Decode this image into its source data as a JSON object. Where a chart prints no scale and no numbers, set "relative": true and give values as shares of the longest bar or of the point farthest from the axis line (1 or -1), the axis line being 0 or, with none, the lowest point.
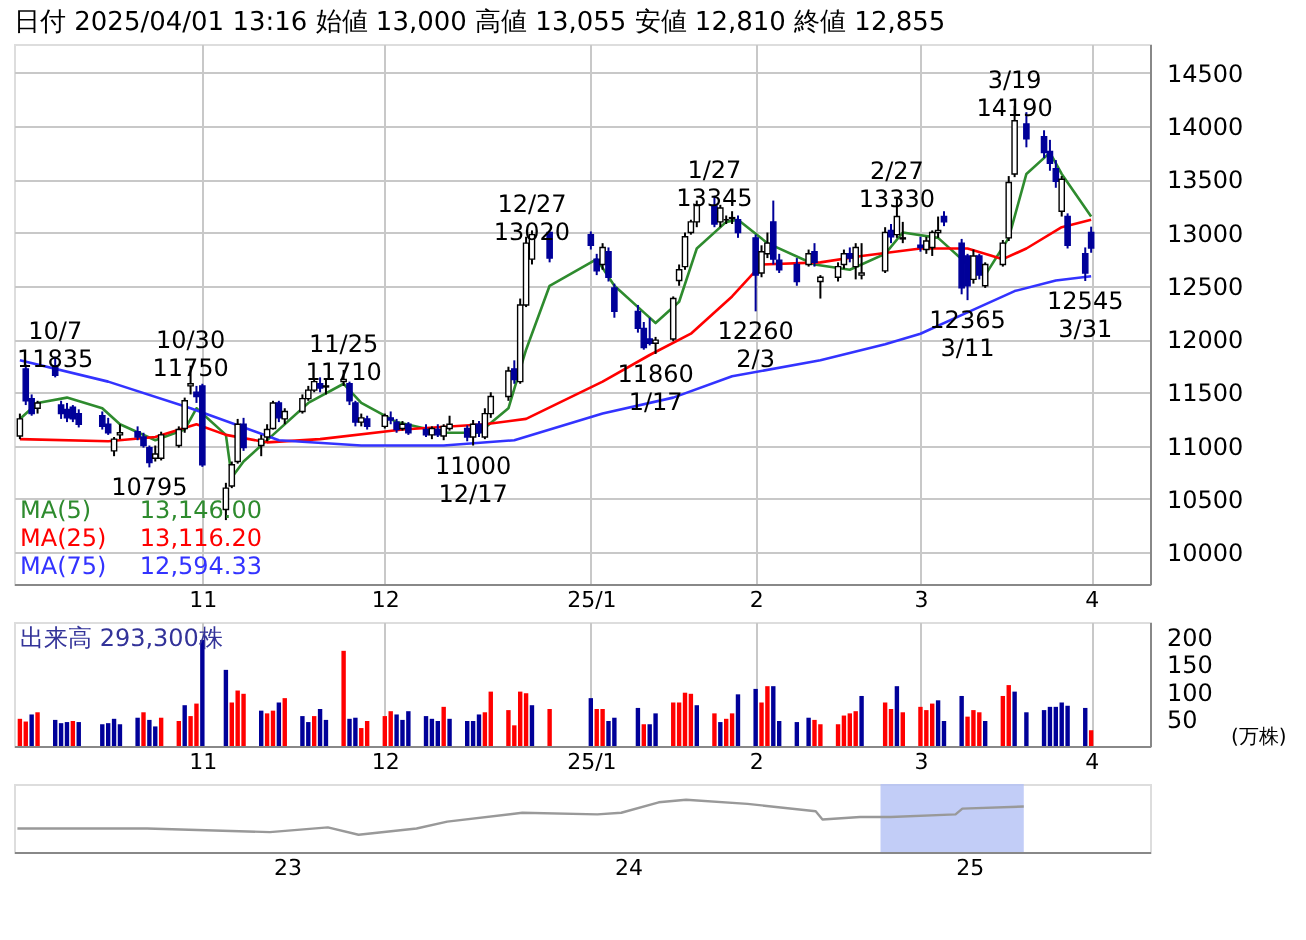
{
  "chart_data": [
    {
      "type": "candlestick",
      "title": "日付 2025/04/01 13:16 始値 13,000 高値 13,055 安値 12,810 終値 12,855",
      "x": [
        "2024-10-01",
        "2024-10-02",
        "2024-10-03",
        "2024-10-04",
        "2024-10-07",
        "2024-10-08",
        "2024-10-09",
        "2024-10-10",
        "2024-10-11",
        "2024-10-15",
        "2024-10-16",
        "2024-10-17",
        "2024-10-18",
        "2024-10-21",
        "2024-10-22",
        "2024-10-23",
        "2024-10-24",
        "2024-10-25",
        "2024-10-28",
        "2024-10-29",
        "2024-10-30",
        "2024-10-31",
        "2024-11-01",
        "2024-11-05",
        "2024-11-06",
        "2024-11-07",
        "2024-11-08",
        "2024-11-11",
        "2024-11-12",
        "2024-11-13",
        "2024-11-14",
        "2024-11-15",
        "2024-11-18",
        "2024-11-19",
        "2024-11-20",
        "2024-11-21",
        "2024-11-22",
        "2024-11-25",
        "2024-11-26",
        "2024-11-27",
        "2024-11-28",
        "2024-11-29",
        "2024-12-02",
        "2024-12-03",
        "2024-12-04",
        "2024-12-05",
        "2024-12-06",
        "2024-12-09",
        "2024-12-10",
        "2024-12-11",
        "2024-12-12",
        "2024-12-13",
        "2024-12-16",
        "2024-12-17",
        "2024-12-18",
        "2024-12-19",
        "2024-12-20",
        "2024-12-23",
        "2024-12-24",
        "2024-12-25",
        "2024-12-26",
        "2024-12-27",
        "2024-12-30",
        "2025-01-06",
        "2025-01-07",
        "2025-01-08",
        "2025-01-09",
        "2025-01-10",
        "2025-01-14",
        "2025-01-15",
        "2025-01-16",
        "2025-01-17",
        "2025-01-20",
        "2025-01-21",
        "2025-01-22",
        "2025-01-23",
        "2025-01-24",
        "2025-01-27",
        "2025-01-28",
        "2025-01-29",
        "2025-01-30",
        "2025-01-31",
        "2025-02-03",
        "2025-02-04",
        "2025-02-05",
        "2025-02-06",
        "2025-02-07",
        "2025-02-10",
        "2025-02-12",
        "2025-02-13",
        "2025-02-14",
        "2025-02-17",
        "2025-02-18",
        "2025-02-19",
        "2025-02-20",
        "2025-02-21",
        "2025-02-25",
        "2025-02-26",
        "2025-02-27",
        "2025-02-28",
        "2025-03-03",
        "2025-03-04",
        "2025-03-05",
        "2025-03-06",
        "2025-03-07",
        "2025-03-10",
        "2025-03-11",
        "2025-03-12",
        "2025-03-13",
        "2025-03-14",
        "2025-03-17",
        "2025-03-18",
        "2025-03-19",
        "2025-03-21",
        "2025-03-24",
        "2025-03-25",
        "2025-03-26",
        "2025-03-27",
        "2025-03-28",
        "2025-03-31",
        "2025-04-01"
      ],
      "ohlc": [
        [
          11090,
          11300,
          11060,
          11250
        ],
        [
          11720,
          11760,
          11380,
          11420
        ],
        [
          11440,
          11480,
          11280,
          11300
        ],
        [
          11350,
          11420,
          11300,
          11400
        ],
        [
          11750,
          11835,
          11640,
          11660
        ],
        [
          11380,
          11420,
          11250,
          11300
        ],
        [
          11340,
          11400,
          11220,
          11260
        ],
        [
          11360,
          11380,
          11220,
          11250
        ],
        [
          11300,
          11340,
          11170,
          11200
        ],
        [
          11280,
          11320,
          11150,
          11180
        ],
        [
          11200,
          11260,
          11100,
          11120
        ],
        [
          10950,
          11080,
          10900,
          11060
        ],
        [
          11100,
          11200,
          11060,
          11120
        ],
        [
          11130,
          11180,
          11050,
          11080
        ],
        [
          11080,
          11120,
          10980,
          11000
        ],
        [
          10980,
          11000,
          10795,
          10840
        ],
        [
          10880,
          11000,
          10850,
          10920
        ],
        [
          10880,
          11130,
          10860,
          11100
        ],
        [
          11000,
          11180,
          10980,
          11150
        ],
        [
          11160,
          11450,
          11120,
          11420
        ],
        [
          11560,
          11750,
          11480,
          11580
        ],
        [
          11500,
          11560,
          11400,
          11460
        ],
        [
          11560,
          11580,
          10800,
          10820
        ],
        [
          10400,
          10650,
          10300,
          10600
        ],
        [
          10620,
          10850,
          10600,
          10820
        ],
        [
          10850,
          11250,
          10830,
          11200
        ],
        [
          11200,
          11260,
          10950,
          10980
        ],
        [
          11000,
          11100,
          10900,
          11060
        ],
        [
          11080,
          11200,
          11040,
          11150
        ],
        [
          11160,
          11420,
          11150,
          11400
        ],
        [
          11400,
          11420,
          11220,
          11260
        ],
        [
          11250,
          11350,
          11200,
          11320
        ],
        [
          11320,
          11480,
          11300,
          11440
        ],
        [
          11440,
          11560,
          11420,
          11520
        ],
        [
          11520,
          11620,
          11500,
          11600
        ],
        [
          11580,
          11640,
          11500,
          11540
        ],
        [
          11550,
          11620,
          11480,
          11560
        ],
        [
          11600,
          11710,
          11560,
          11620
        ],
        [
          11580,
          11600,
          11380,
          11420
        ],
        [
          11400,
          11420,
          11180,
          11220
        ],
        [
          11220,
          11300,
          11180,
          11260
        ],
        [
          11250,
          11280,
          11150,
          11180
        ],
        [
          11180,
          11300,
          11160,
          11280
        ],
        [
          11260,
          11320,
          11200,
          11240
        ],
        [
          11220,
          11250,
          11120,
          11150
        ],
        [
          11160,
          11230,
          11140,
          11200
        ],
        [
          11200,
          11220,
          11100,
          11120
        ],
        [
          11150,
          11200,
          11080,
          11100
        ],
        [
          11100,
          11180,
          11060,
          11160
        ],
        [
          11150,
          11200,
          11080,
          11100
        ],
        [
          11090,
          11200,
          11050,
          11180
        ],
        [
          11160,
          11280,
          11140,
          11200
        ],
        [
          11160,
          11190,
          11040,
          11080
        ],
        [
          11080,
          11240,
          11000,
          11200
        ],
        [
          11200,
          11230,
          11080,
          11120
        ],
        [
          11080,
          11350,
          11060,
          11300
        ],
        [
          11300,
          11500,
          11260,
          11460
        ],
        [
          11460,
          11740,
          11420,
          11700
        ],
        [
          11720,
          11800,
          11580,
          11620
        ],
        [
          11600,
          12380,
          11580,
          12320
        ],
        [
          12320,
          12960,
          12300,
          12900
        ],
        [
          12750,
          13020,
          12700,
          12980
        ],
        [
          13000,
          13010,
          12720,
          12760
        ],
        [
          12980,
          13010,
          12840,
          12880
        ],
        [
          12750,
          12800,
          12600,
          12640
        ],
        [
          12700,
          12900,
          12650,
          12860
        ],
        [
          12820,
          12860,
          12540,
          12580
        ],
        [
          12480,
          12520,
          12200,
          12260
        ],
        [
          12260,
          12320,
          12060,
          12100
        ],
        [
          12100,
          12160,
          11900,
          11920
        ],
        [
          12000,
          12200,
          11940,
          11960
        ],
        [
          11960,
          12020,
          11860,
          11990
        ],
        [
          12000,
          12400,
          11980,
          12380
        ],
        [
          12550,
          12700,
          12500,
          12650
        ],
        [
          12680,
          13000,
          12650,
          12960
        ],
        [
          13000,
          13120,
          12980,
          13100
        ],
        [
          13100,
          13300,
          13050,
          13260
        ],
        [
          13250,
          13345,
          13050,
          13080
        ],
        [
          13100,
          13260,
          13050,
          13230
        ],
        [
          13120,
          13160,
          13080,
          13120
        ],
        [
          13130,
          13200,
          13080,
          13140
        ],
        [
          13120,
          13160,
          12950,
          13000
        ],
        [
          12950,
          12980,
          12260,
          12600
        ],
        [
          12620,
          12880,
          12580,
          12820
        ],
        [
          12800,
          13000,
          12760,
          12900
        ],
        [
          13100,
          13300,
          12700,
          12750
        ],
        [
          12740,
          12800,
          12620,
          12650
        ],
        [
          12700,
          12760,
          12500,
          12540
        ],
        [
          12700,
          12840,
          12680,
          12800
        ],
        [
          12820,
          12900,
          12680,
          12720
        ],
        [
          12540,
          12600,
          12380,
          12580
        ],
        [
          12580,
          12720,
          12540,
          12680
        ],
        [
          12700,
          12840,
          12660,
          12800
        ],
        [
          12800,
          12860,
          12720,
          12760
        ],
        [
          12680,
          12900,
          12560,
          12860
        ],
        [
          12600,
          12900,
          12560,
          12620
        ],
        [
          12640,
          13050,
          12620,
          13000
        ],
        [
          13020,
          13080,
          12900,
          12960
        ],
        [
          12980,
          13330,
          12950,
          13150
        ],
        [
          12940,
          13100,
          12900,
          12950
        ],
        [
          12880,
          12960,
          12820,
          12860
        ],
        [
          12840,
          12960,
          12800,
          12920
        ],
        [
          12860,
          13020,
          12780,
          13000
        ],
        [
          13000,
          13150,
          12950,
          13020
        ],
        [
          13150,
          13200,
          13060,
          13100
        ],
        [
          12900,
          12940,
          12420,
          12480
        ],
        [
          12780,
          12800,
          12365,
          12500
        ],
        [
          12560,
          12840,
          12520,
          12780
        ],
        [
          12780,
          12800,
          12560,
          12600
        ],
        [
          12500,
          12720,
          12480,
          12700
        ],
        [
          12700,
          12930,
          12680,
          12900
        ],
        [
          12950,
          13530,
          12920,
          13470
        ],
        [
          13550,
          14190,
          13520,
          14050
        ],
        [
          14020,
          14130,
          13800,
          13880
        ],
        [
          13900,
          13960,
          13700,
          13750
        ],
        [
          13760,
          13870,
          13580,
          13650
        ],
        [
          13600,
          13680,
          13420,
          13480
        ],
        [
          13200,
          13530,
          13150,
          13500
        ],
        [
          13150,
          13180,
          12850,
          12880
        ],
        [
          12800,
          12860,
          12545,
          12620
        ],
        [
          13000,
          13055,
          12810,
          12855
        ]
      ],
      "series": [
        {
          "name": "MA(5)",
          "type": "line",
          "color": "#2e8b2e",
          "x": [
            "2024-10-01",
            "2024-10-04",
            "2024-10-09",
            "2024-10-15",
            "2024-10-18",
            "2024-10-24",
            "2024-10-29",
            "2024-10-31",
            "2024-11-05",
            "2024-11-06",
            "2024-11-08",
            "2024-11-13",
            "2024-11-19",
            "2024-11-25",
            "2024-11-28",
            "2024-12-04",
            "2024-12-12",
            "2024-12-18",
            "2024-12-23",
            "2024-12-26",
            "2024-12-30",
            "2025-01-07",
            "2025-01-10",
            "2025-01-15",
            "2025-01-17",
            "2025-01-21",
            "2025-01-24",
            "2025-01-29",
            "2025-01-31",
            "2025-02-05",
            "2025-02-13",
            "2025-02-19",
            "2025-02-25",
            "2025-02-28",
            "2025-03-06",
            "2025-03-11",
            "2025-03-14",
            "2025-03-18",
            "2025-03-21",
            "2025-03-25",
            "2025-03-27",
            "2025-04-01"
          ],
          "values": [
            11250,
            11400,
            11450,
            11350,
            11200,
            11050,
            11150,
            11350,
            11100,
            10700,
            10850,
            11100,
            11400,
            11580,
            11400,
            11220,
            11120,
            11120,
            11350,
            11900,
            12500,
            12750,
            12500,
            12250,
            12150,
            12350,
            12850,
            13100,
            13120,
            12900,
            12700,
            12650,
            12800,
            13000,
            12950,
            12700,
            12600,
            12950,
            13550,
            13750,
            13550,
            13150
          ]
        },
        {
          "name": "MA(25)",
          "type": "line",
          "color": "#ff0000",
          "x": [
            "2024-10-01",
            "2024-10-16",
            "2024-10-24",
            "2024-10-31",
            "2024-11-05",
            "2024-11-12",
            "2024-11-21",
            "2024-12-05",
            "2024-12-19",
            "2024-12-26",
            "2025-01-08",
            "2025-01-16",
            "2025-01-23",
            "2025-01-30",
            "2025-02-04",
            "2025-02-14",
            "2025-02-21",
            "2025-03-03",
            "2025-03-11",
            "2025-03-17",
            "2025-03-21",
            "2025-03-27",
            "2025-04-01"
          ],
          "values": [
            11060,
            11040,
            11080,
            11200,
            11100,
            11030,
            11060,
            11150,
            11200,
            11250,
            11600,
            11850,
            12050,
            12400,
            12700,
            12720,
            12780,
            12850,
            12850,
            12750,
            12850,
            13050,
            13120
          ]
        },
        {
          "name": "MA(75)",
          "type": "line",
          "color": "#3333ff",
          "x": [
            "2024-10-01",
            "2024-10-16",
            "2024-10-30",
            "2024-11-14",
            "2024-11-28",
            "2024-12-12",
            "2024-12-24",
            "2025-01-08",
            "2025-01-20",
            "2025-01-30",
            "2025-02-14",
            "2025-02-25",
            "2025-03-03",
            "2025-03-11",
            "2025-03-19",
            "2025-03-26",
            "2025-04-01"
          ],
          "values": [
            11800,
            11600,
            11350,
            11050,
            11000,
            11000,
            11050,
            11300,
            11450,
            11650,
            11800,
            11950,
            12050,
            12250,
            12450,
            12550,
            12590
          ]
        }
      ],
      "annotations": [
        "13,146.00",
        "13,116.20",
        "12,594.33",
        {
          "text": "10/7\n11835",
          "x": "2024-10-07",
          "y": 11835
        },
        {
          "text": "10795",
          "x": "2024-10-23",
          "y": 10795
        },
        {
          "text": "10/30\n11750",
          "x": "2024-10-30",
          "y": 11750
        },
        {
          "text": "11/25\n11710",
          "x": "2024-11-25",
          "y": 11710
        },
        {
          "text": "11000\n12/17",
          "x": "2024-12-17",
          "y": 11000
        },
        {
          "text": "12/27\n13020",
          "x": "2024-12-27",
          "y": 13020
        },
        {
          "text": "11860\n1/17",
          "x": "2025-01-17",
          "y": 11860
        },
        {
          "text": "1/27\n13345",
          "x": "2025-01-27",
          "y": 13345
        },
        {
          "text": "12260\n2/3",
          "x": "2025-02-03",
          "y": 12260
        },
        {
          "text": "2/27\n13330",
          "x": "2025-02-27",
          "y": 13330
        },
        {
          "text": "12365\n3/11",
          "x": "2025-03-11",
          "y": 12365
        },
        {
          "text": "3/19\n14190",
          "x": "2025-03-19",
          "y": 14190
        },
        {
          "text": "12545\n3/31",
          "x": "2025-03-31",
          "y": 12545
        }
      ],
      "xlim": [
        "2024-09-30",
        "2025-04-11"
      ],
      "xticks": [
        {
          "value": "2024-11-01",
          "label": "11"
        },
        {
          "value": "2024-12-02",
          "label": "12"
        },
        {
          "value": "2025-01-06",
          "label": "25/1"
        },
        {
          "value": "2025-02-03",
          "label": "2"
        },
        {
          "value": "2025-03-03",
          "label": "3"
        },
        {
          "value": "2025-04-01",
          "label": "4"
        }
      ],
      "ylim": [
        9700,
        14770
      ],
      "yticks": [
        10000,
        10500,
        11000,
        11500,
        12000,
        12500,
        13000,
        13500,
        14000,
        14500
      ],
      "grid": true,
      "legend": "bottom left"
    },
    {
      "type": "bar",
      "title": "出来高 293,300株",
      "ylabel": "(万株)",
      "x": [
        "2024-10-01",
        "2024-10-02",
        "2024-10-03",
        "2024-10-04",
        "2024-10-07",
        "2024-10-08",
        "2024-10-09",
        "2024-10-10",
        "2024-10-11",
        "2024-10-15",
        "2024-10-16",
        "2024-10-17",
        "2024-10-18",
        "2024-10-21",
        "2024-10-22",
        "2024-10-23",
        "2024-10-24",
        "2024-10-25",
        "2024-10-28",
        "2024-10-29",
        "2024-10-30",
        "2024-10-31",
        "2024-11-01",
        "2024-11-05",
        "2024-11-06",
        "2024-11-07",
        "2024-11-08",
        "2024-11-11",
        "2024-11-12",
        "2024-11-13",
        "2024-11-14",
        "2024-11-15",
        "2024-11-18",
        "2024-11-19",
        "2024-11-20",
        "2024-11-21",
        "2024-11-22",
        "2024-11-25",
        "2024-11-26",
        "2024-11-27",
        "2024-11-28",
        "2024-11-29",
        "2024-12-02",
        "2024-12-03",
        "2024-12-04",
        "2024-12-05",
        "2024-12-06",
        "2024-12-09",
        "2024-12-10",
        "2024-12-11",
        "2024-12-12",
        "2024-12-13",
        "2024-12-16",
        "2024-12-17",
        "2024-12-18",
        "2024-12-19",
        "2024-12-20",
        "2024-12-23",
        "2024-12-24",
        "2024-12-25",
        "2024-12-26",
        "2024-12-27",
        "2024-12-30",
        "2025-01-06",
        "2025-01-07",
        "2025-01-08",
        "2025-01-09",
        "2025-01-10",
        "2025-01-14",
        "2025-01-15",
        "2025-01-16",
        "2025-01-17",
        "2025-01-20",
        "2025-01-21",
        "2025-01-22",
        "2025-01-23",
        "2025-01-24",
        "2025-01-27",
        "2025-01-28",
        "2025-01-29",
        "2025-01-30",
        "2025-01-31",
        "2025-02-03",
        "2025-02-04",
        "2025-02-05",
        "2025-02-06",
        "2025-02-07",
        "2025-02-10",
        "2025-02-12",
        "2025-02-13",
        "2025-02-14",
        "2025-02-17",
        "2025-02-18",
        "2025-02-19",
        "2025-02-20",
        "2025-02-21",
        "2025-02-25",
        "2025-02-26",
        "2025-02-27",
        "2025-02-28",
        "2025-03-03",
        "2025-03-04",
        "2025-03-05",
        "2025-03-06",
        "2025-03-07",
        "2025-03-10",
        "2025-03-11",
        "2025-03-12",
        "2025-03-13",
        "2025-03-14",
        "2025-03-17",
        "2025-03-18",
        "2025-03-19",
        "2025-03-21",
        "2025-03-24",
        "2025-03-25",
        "2025-03-26",
        "2025-03-27",
        "2025-03-28",
        "2025-03-31",
        "2025-04-01"
      ],
      "values": [
        50,
        45,
        58,
        62,
        48,
        42,
        44,
        46,
        44,
        40,
        42,
        50,
        40,
        52,
        62,
        48,
        36,
        52,
        46,
        75,
        55,
        78,
        195,
        140,
        80,
        102,
        96,
        65,
        60,
        65,
        80,
        88,
        55,
        44,
        55,
        68,
        48,
        175,
        50,
        52,
        33,
        46,
        55,
        64,
        58,
        48,
        64,
        55,
        50,
        46,
        72,
        50,
        46,
        46,
        58,
        62,
        100,
        66,
        38,
        100,
        97,
        75,
        68,
        88,
        68,
        68,
        46,
        52,
        70,
        40,
        40,
        60,
        80,
        80,
        98,
        96,
        75,
        60,
        44,
        50,
        60,
        95,
        105,
        80,
        110,
        110,
        46,
        44,
        52,
        48,
        40,
        40,
        56,
        60,
        64,
        92,
        80,
        68,
        110,
        62,
        72,
        66,
        78,
        84,
        46,
        92,
        54,
        66,
        62,
        46,
        92,
        112,
        100,
        62,
        66,
        72,
        72,
        80,
        74,
        70,
        29
      ],
      "colors": [
        "#ff0000",
        "#ff0000",
        "#000099",
        "#ff0000",
        "#000099",
        "#000099",
        "#000099",
        "#ff0000",
        "#000099",
        "#000099",
        "#000099",
        "#000099",
        "#000099",
        "#000099",
        "#ff0000",
        "#000099",
        "#000099",
        "#ff0000",
        "#ff0000",
        "#000099",
        "#ff0000",
        "#ff0000",
        "#000099",
        "#000099",
        "#ff0000",
        "#ff0000",
        "#ff0000",
        "#000099",
        "#ff0000",
        "#ff0000",
        "#000099",
        "#ff0000",
        "#000099",
        "#000099",
        "#ff0000",
        "#000099",
        "#000099",
        "#ff0000",
        "#000099",
        "#000099",
        "#ff0000",
        "#ff0000",
        "#ff0000",
        "#ff0000",
        "#000099",
        "#000099",
        "#000099",
        "#000099",
        "#000099",
        "#000099",
        "#ff0000",
        "#000099",
        "#000099",
        "#000099",
        "#000099",
        "#ff0000",
        "#ff0000",
        "#ff0000",
        "#ff0000",
        "#ff0000",
        "#ff0000",
        "#000099",
        "#ff0000",
        "#000099",
        "#ff0000",
        "#ff0000",
        "#000099",
        "#000099",
        "#000099",
        "#ff0000",
        "#000099",
        "#000099",
        "#ff0000",
        "#ff0000",
        "#ff0000",
        "#ff0000",
        "#000099",
        "#ff0000",
        "#000099",
        "#ff0000",
        "#ff0000",
        "#000099",
        "#000099",
        "#ff0000",
        "#ff0000",
        "#000099",
        "#000099",
        "#000099",
        "#000099",
        "#ff0000",
        "#ff0000",
        "#ff0000",
        "#ff0000",
        "#ff0000",
        "#ff0000",
        "#000099",
        "#ff0000",
        "#ff0000",
        "#000099",
        "#ff0000",
        "#ff0000",
        "#ff0000",
        "#ff0000",
        "#000099",
        "#000099",
        "#000099",
        "#ff0000",
        "#ff0000",
        "#ff0000",
        "#000099",
        "#ff0000",
        "#ff0000",
        "#000099",
        "#000099",
        "#000099",
        "#000099",
        "#000099",
        "#000099",
        "#000099",
        "#000099",
        "#ff0000"
      ],
      "xlim": [
        "2024-09-30",
        "2025-04-11"
      ],
      "xticks": [
        {
          "value": "2024-11-01",
          "label": "11"
        },
        {
          "value": "2024-12-02",
          "label": "12"
        },
        {
          "value": "2025-01-06",
          "label": "25/1"
        },
        {
          "value": "2025-02-03",
          "label": "2"
        },
        {
          "value": "2025-03-03",
          "label": "3"
        },
        {
          "value": "2025-04-01",
          "label": "4"
        }
      ],
      "ylim": [
        0,
        228
      ],
      "yticks": [
        50,
        100,
        150,
        200
      ],
      "grid": "x"
    },
    {
      "type": "line",
      "relative": true,
      "color": "#999999",
      "x": [
        2022.21,
        2022.59,
        2022.95,
        2023.12,
        2023.21,
        2023.38,
        2023.47,
        2023.69,
        2023.91,
        2023.98,
        2024.09,
        2024.17,
        2024.35,
        2024.55,
        2024.57,
        2024.68,
        2024.77,
        2024.96,
        2024.98,
        2025.16
      ],
      "values": [
        0.45,
        0.45,
        0.38,
        0.47,
        0.33,
        0.45,
        0.58,
        0.75,
        0.72,
        0.75,
        0.95,
        1,
        0.92,
        0.78,
        0.62,
        0.67,
        0.67,
        0.72,
        0.83,
        0.87
      ],
      "bands": [
        {
          "axis": "x",
          "from": 2024.74,
          "to": 2025.16,
          "color": "#b3c0f5"
        }
      ],
      "xlim": [
        2022.2,
        2025.53
      ],
      "xticks": [
        {
          "value": 2023,
          "label": "23"
        },
        {
          "value": 2024,
          "label": "24"
        },
        {
          "value": 2025,
          "label": "25"
        }
      ],
      "tick_labels": "x"
    }
  ]
}
